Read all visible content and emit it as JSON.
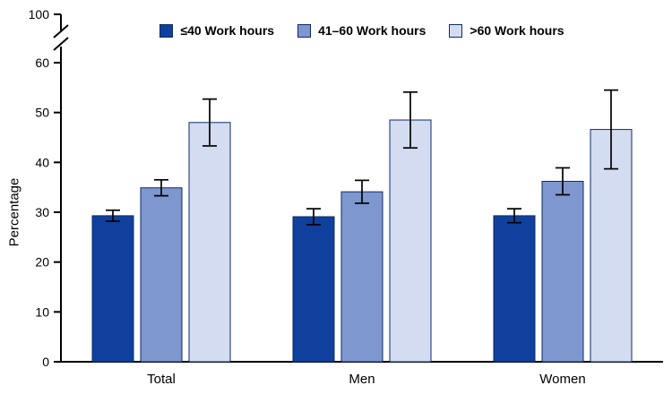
{
  "chart_data": {
    "type": "bar",
    "title": "",
    "ylabel": "Percentage",
    "categories": [
      "Total",
      "Men",
      "Women"
    ],
    "series": [
      {
        "name": "≤40 Work hours",
        "color": "#10409e",
        "values": [
          29.3,
          29.1,
          29.3
        ],
        "errors": [
          1.1,
          1.6,
          1.4
        ]
      },
      {
        "name": "41–60 Work hours",
        "color": "#7f97cf",
        "values": [
          34.9,
          34.1,
          36.2
        ],
        "errors": [
          1.6,
          2.3,
          2.7
        ]
      },
      {
        "name": ">60 Work hours",
        "color": "#d3dcf0",
        "values": [
          48.0,
          48.5,
          46.6
        ],
        "errors": [
          4.7,
          5.6,
          7.9
        ]
      }
    ],
    "y_ticks": [
      0,
      10,
      20,
      30,
      40,
      50,
      60
    ],
    "y_break_top_label": "100",
    "ylim": [
      0,
      60
    ],
    "axis_color": "#000000",
    "bar_outline_color": "#0d2b66",
    "error_bar_color": "#000000",
    "legend_position": "top",
    "grid": "off"
  }
}
